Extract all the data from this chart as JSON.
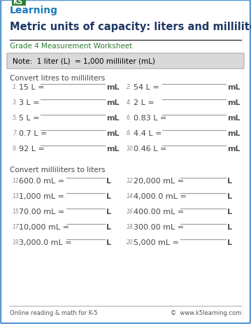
{
  "title": "Metric units of capacity: liters and milliliters",
  "subtitle": "Grade 4 Measurement Worksheet",
  "note": "Note:  1 liter (L)  = 1,000 milliliter (mL)",
  "section1_header": "Convert litres to milliliters",
  "section2_header": "Convert milliliters to liters",
  "col1_problems": [
    {
      "num": "1.",
      "expr": "15 L =",
      "unit": "mL"
    },
    {
      "num": "3.",
      "expr": "3 L =",
      "unit": "mL"
    },
    {
      "num": "5.",
      "expr": "5 L =",
      "unit": "mL"
    },
    {
      "num": "7.",
      "expr": "0.7 L =",
      "unit": "mL"
    },
    {
      "num": "9.",
      "expr": "92 L =",
      "unit": "mL"
    }
  ],
  "col2_problems": [
    {
      "num": "2.",
      "expr": "54 L =",
      "unit": "mL"
    },
    {
      "num": "4.",
      "expr": "2 L =",
      "unit": "mL"
    },
    {
      "num": "6.",
      "expr": "0.83 L =",
      "unit": "mL"
    },
    {
      "num": "8.",
      "expr": "4.4 L =",
      "unit": "mL"
    },
    {
      "num": "10.",
      "expr": "0.46 L =",
      "unit": "mL"
    }
  ],
  "col3_problems": [
    {
      "num": "11.",
      "expr": "600.0 mL =",
      "unit": "L"
    },
    {
      "num": "13.",
      "expr": "1,000 mL =",
      "unit": "L"
    },
    {
      "num": "15.",
      "expr": "70.00 mL =",
      "unit": "L"
    },
    {
      "num": "17.",
      "expr": "10,000 mL =",
      "unit": "L"
    },
    {
      "num": "19.",
      "expr": "3,000.0 mL =",
      "unit": "L"
    }
  ],
  "col4_problems": [
    {
      "num": "12.",
      "expr": "20,000 mL =",
      "unit": "L"
    },
    {
      "num": "14.",
      "expr": "4,000.0 mL =",
      "unit": "L"
    },
    {
      "num": "16.",
      "expr": "400.00 mL =",
      "unit": "L"
    },
    {
      "num": "18.",
      "expr": "300.00 mL =",
      "unit": "L"
    },
    {
      "num": "20.",
      "expr": "5,000 mL =",
      "unit": "L"
    }
  ],
  "footer_left": "Online reading & math for K-5",
  "footer_right": "©  www.k5learning.com",
  "border_color": "#5b9bd5",
  "title_color": "#1f3864",
  "subtitle_color": "#2e7d32",
  "note_bg": "#d9d9d9",
  "note_border": "#aaaaaa",
  "note_text_color": "#000000",
  "section_header_color": "#444444",
  "problem_color": "#444444",
  "line_color": "#999999",
  "num_color": "#888888",
  "unit_color": "#555555",
  "bg_color": "#ffffff"
}
